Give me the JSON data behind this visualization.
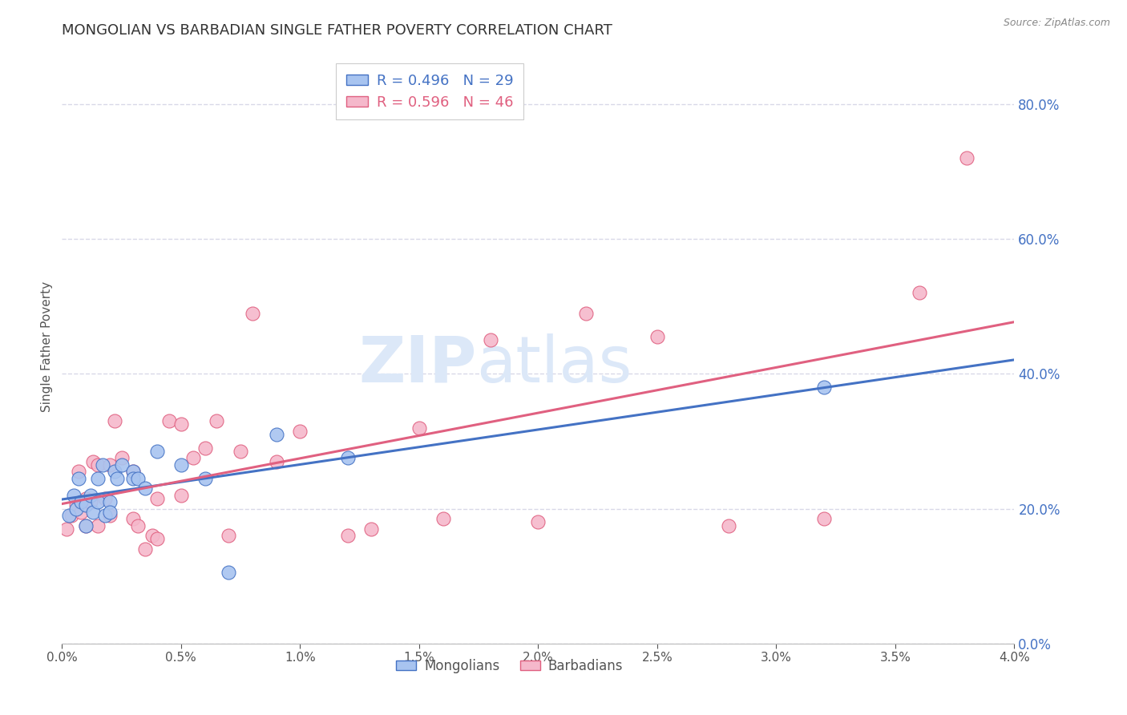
{
  "title": "MONGOLIAN VS BARBADIAN SINGLE FATHER POVERTY CORRELATION CHART",
  "source": "Source: ZipAtlas.com",
  "ylabel": "Single Father Poverty",
  "xlim": [
    0.0,
    0.04
  ],
  "ylim": [
    0.0,
    0.88
  ],
  "yticks": [
    0.0,
    0.2,
    0.4,
    0.6,
    0.8
  ],
  "xticks": [
    0.0,
    0.005,
    0.01,
    0.015,
    0.02,
    0.025,
    0.03,
    0.035,
    0.04
  ],
  "mongolian_R": 0.496,
  "mongolian_N": 29,
  "barbadian_R": 0.596,
  "barbadian_N": 46,
  "mongolian_color": "#a8c4f0",
  "barbadian_color": "#f5b8cb",
  "mongolian_line_color": "#4472c4",
  "barbadian_line_color": "#e06080",
  "legend_label_mongolian": "Mongolians",
  "legend_label_barbadian": "Barbadians",
  "mongolian_x": [
    0.0003,
    0.0005,
    0.0006,
    0.0007,
    0.0008,
    0.001,
    0.001,
    0.0012,
    0.0013,
    0.0015,
    0.0015,
    0.0017,
    0.0018,
    0.002,
    0.002,
    0.0022,
    0.0023,
    0.0025,
    0.003,
    0.003,
    0.0032,
    0.0035,
    0.004,
    0.005,
    0.006,
    0.007,
    0.009,
    0.012,
    0.032
  ],
  "mongolian_y": [
    0.19,
    0.22,
    0.2,
    0.245,
    0.21,
    0.205,
    0.175,
    0.22,
    0.195,
    0.21,
    0.245,
    0.265,
    0.19,
    0.21,
    0.195,
    0.255,
    0.245,
    0.265,
    0.255,
    0.245,
    0.245,
    0.23,
    0.285,
    0.265,
    0.245,
    0.105,
    0.31,
    0.275,
    0.38
  ],
  "barbadian_x": [
    0.0002,
    0.0004,
    0.0006,
    0.0007,
    0.0008,
    0.001,
    0.001,
    0.0012,
    0.0013,
    0.0015,
    0.0015,
    0.0018,
    0.002,
    0.002,
    0.0022,
    0.0025,
    0.003,
    0.003,
    0.0032,
    0.0035,
    0.0038,
    0.004,
    0.004,
    0.0045,
    0.005,
    0.005,
    0.0055,
    0.006,
    0.0065,
    0.007,
    0.0075,
    0.008,
    0.009,
    0.01,
    0.012,
    0.013,
    0.015,
    0.016,
    0.018,
    0.02,
    0.022,
    0.025,
    0.028,
    0.032,
    0.036,
    0.038
  ],
  "barbadian_y": [
    0.17,
    0.19,
    0.205,
    0.255,
    0.195,
    0.215,
    0.175,
    0.21,
    0.27,
    0.265,
    0.175,
    0.215,
    0.265,
    0.19,
    0.33,
    0.275,
    0.185,
    0.255,
    0.175,
    0.14,
    0.16,
    0.215,
    0.155,
    0.33,
    0.325,
    0.22,
    0.275,
    0.29,
    0.33,
    0.16,
    0.285,
    0.49,
    0.27,
    0.315,
    0.16,
    0.17,
    0.32,
    0.185,
    0.45,
    0.18,
    0.49,
    0.455,
    0.175,
    0.185,
    0.52,
    0.72
  ],
  "background_color": "#ffffff",
  "grid_color": "#d8d8e8",
  "title_color": "#333333",
  "axis_label_color": "#555555",
  "tick_color": "#4472c4",
  "watermark_zip": "ZIP",
  "watermark_atlas": "atlas",
  "watermark_color": "#dce8f8"
}
